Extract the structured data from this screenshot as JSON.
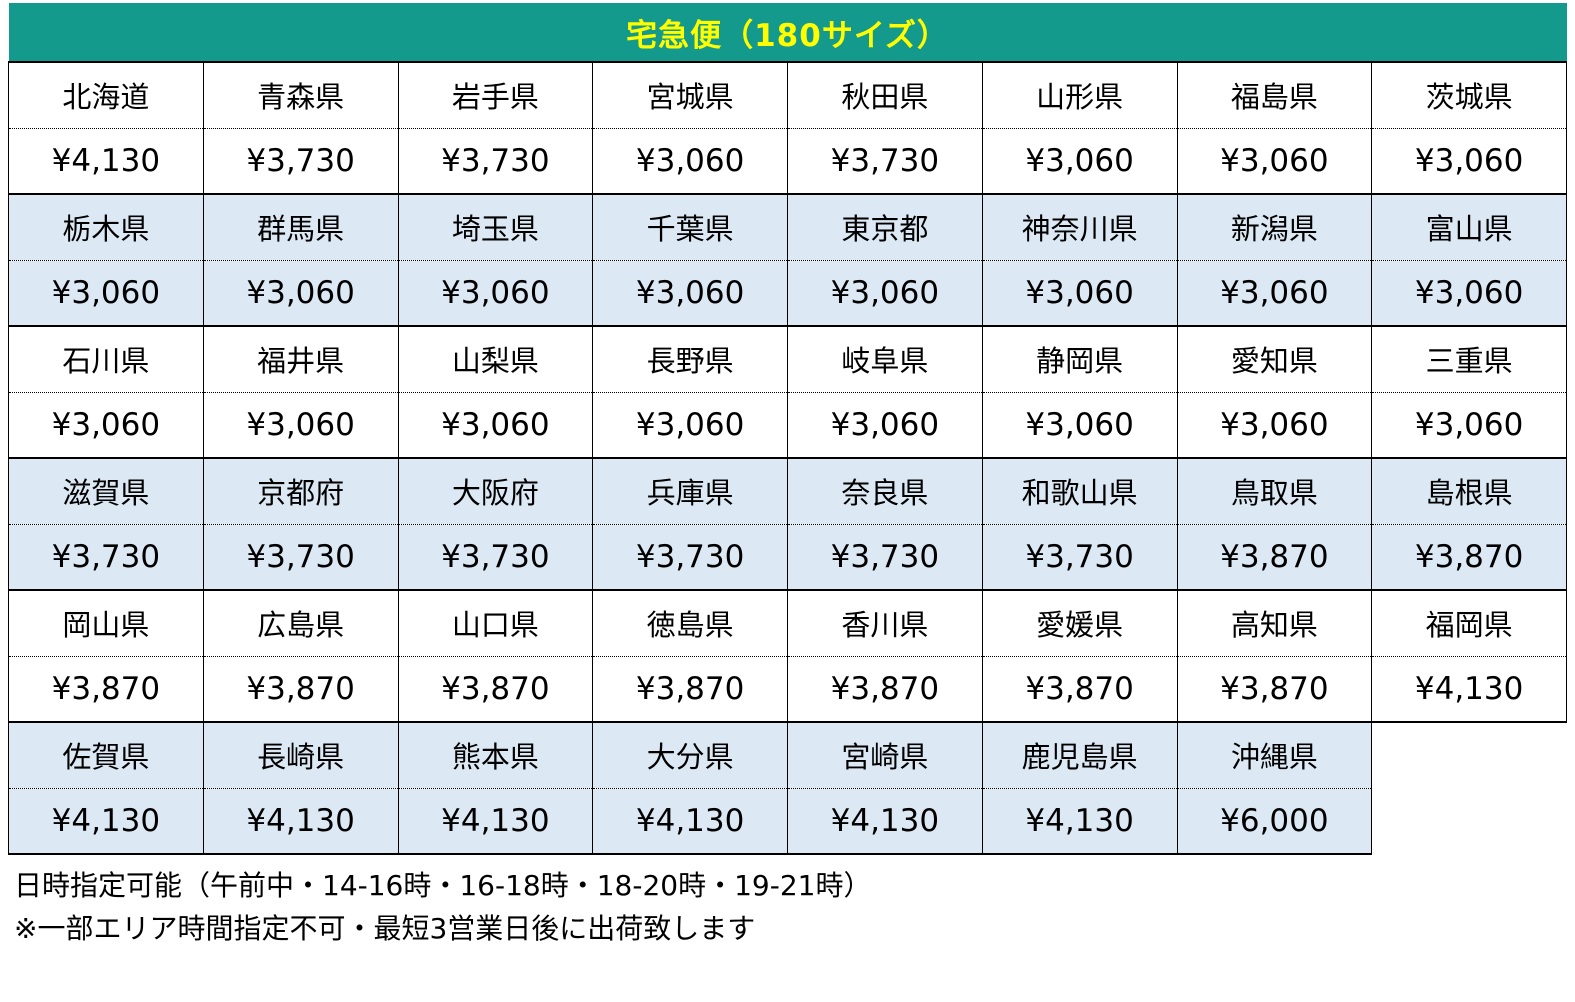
{
  "title": "宅急便（180サイズ）",
  "colors": {
    "header_bg": "#149A8D",
    "header_text": "#FFFF00",
    "band_blue": "#DCE9F5",
    "band_white": "#FFFFFF",
    "border": "#000000"
  },
  "table": {
    "columns": 8,
    "bands": [
      {
        "bg": "band-white",
        "cells": [
          {
            "name": "北海道",
            "price": "¥4,130"
          },
          {
            "name": "青森県",
            "price": "¥3,730"
          },
          {
            "name": "岩手県",
            "price": "¥3,730"
          },
          {
            "name": "宮城県",
            "price": "¥3,060"
          },
          {
            "name": "秋田県",
            "price": "¥3,730"
          },
          {
            "name": "山形県",
            "price": "¥3,060"
          },
          {
            "name": "福島県",
            "price": "¥3,060"
          },
          {
            "name": "茨城県",
            "price": "¥3,060"
          }
        ]
      },
      {
        "bg": "band-blue",
        "cells": [
          {
            "name": "栃木県",
            "price": "¥3,060"
          },
          {
            "name": "群馬県",
            "price": "¥3,060"
          },
          {
            "name": "埼玉県",
            "price": "¥3,060"
          },
          {
            "name": "千葉県",
            "price": "¥3,060"
          },
          {
            "name": "東京都",
            "price": "¥3,060"
          },
          {
            "name": "神奈川県",
            "price": "¥3,060"
          },
          {
            "name": "新潟県",
            "price": "¥3,060"
          },
          {
            "name": "富山県",
            "price": "¥3,060"
          }
        ]
      },
      {
        "bg": "band-white",
        "cells": [
          {
            "name": "石川県",
            "price": "¥3,060"
          },
          {
            "name": "福井県",
            "price": "¥3,060"
          },
          {
            "name": "山梨県",
            "price": "¥3,060"
          },
          {
            "name": "長野県",
            "price": "¥3,060"
          },
          {
            "name": "岐阜県",
            "price": "¥3,060"
          },
          {
            "name": "静岡県",
            "price": "¥3,060"
          },
          {
            "name": "愛知県",
            "price": "¥3,060"
          },
          {
            "name": "三重県",
            "price": "¥3,060"
          }
        ]
      },
      {
        "bg": "band-blue",
        "cells": [
          {
            "name": "滋賀県",
            "price": "¥3,730"
          },
          {
            "name": "京都府",
            "price": "¥3,730"
          },
          {
            "name": "大阪府",
            "price": "¥3,730"
          },
          {
            "name": "兵庫県",
            "price": "¥3,730"
          },
          {
            "name": "奈良県",
            "price": "¥3,730"
          },
          {
            "name": "和歌山県",
            "price": "¥3,730"
          },
          {
            "name": "鳥取県",
            "price": "¥3,870"
          },
          {
            "name": "島根県",
            "price": "¥3,870"
          }
        ]
      },
      {
        "bg": "band-white",
        "cells": [
          {
            "name": "岡山県",
            "price": "¥3,870"
          },
          {
            "name": "広島県",
            "price": "¥3,870"
          },
          {
            "name": "山口県",
            "price": "¥3,870"
          },
          {
            "name": "徳島県",
            "price": "¥3,870"
          },
          {
            "name": "香川県",
            "price": "¥3,870"
          },
          {
            "name": "愛媛県",
            "price": "¥3,870"
          },
          {
            "name": "高知県",
            "price": "¥3,870"
          },
          {
            "name": "福岡県",
            "price": "¥4,130"
          }
        ]
      },
      {
        "bg": "band-blue",
        "cells": [
          {
            "name": "佐賀県",
            "price": "¥4,130"
          },
          {
            "name": "長崎県",
            "price": "¥4,130"
          },
          {
            "name": "熊本県",
            "price": "¥4,130"
          },
          {
            "name": "大分県",
            "price": "¥4,130"
          },
          {
            "name": "宮崎県",
            "price": "¥4,130"
          },
          {
            "name": "鹿児島県",
            "price": "¥4,130"
          },
          {
            "name": "沖縄県",
            "price": "¥6,000"
          }
        ]
      }
    ]
  },
  "footer": {
    "line1": "日時指定可能（午前中・14-16時・16-18時・18-20時・19-21時）",
    "line2": "※一部エリア時間指定不可・最短3営業日後に出荷致します"
  }
}
